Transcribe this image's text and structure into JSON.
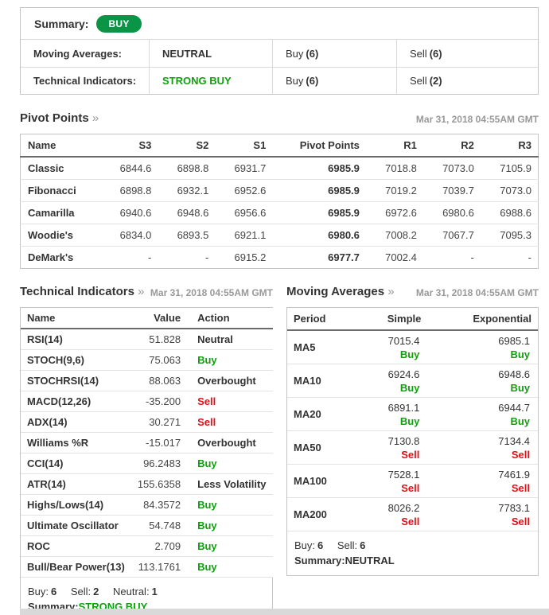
{
  "colors": {
    "badge_green": "#0a9546",
    "action_green": "#0da10d",
    "action_red": "#e01117",
    "neutral_dark": "#333333",
    "date_gray": "#999999",
    "bottom_bar_gray": "#d9d9d9"
  },
  "summary": {
    "label": "Summary:",
    "badge": "BUY",
    "rows": [
      {
        "label": "Moving Averages:",
        "signal": "NEUTRAL",
        "signal_class": "c-dark",
        "buy_label": "Buy",
        "buy_count": "(6)",
        "sell_label": "Sell",
        "sell_count": "(6)"
      },
      {
        "label": "Technical Indicators:",
        "signal": "STRONG BUY",
        "signal_class": "c-green",
        "buy_label": "Buy",
        "buy_count": "(6)",
        "sell_label": "Sell",
        "sell_count": "(2)"
      }
    ]
  },
  "pivot_points": {
    "title": "Pivot Points",
    "chevron": "»",
    "timestamp": "Mar 31, 2018 04:55AM GMT",
    "columns": [
      "Name",
      "S3",
      "S2",
      "S1",
      "Pivot Points",
      "R1",
      "R2",
      "R3"
    ],
    "rows": [
      {
        "name": "Classic",
        "s3": "6844.6",
        "s2": "6898.8",
        "s1": "6931.7",
        "pp": "6985.9",
        "r1": "7018.8",
        "r2": "7073.0",
        "r3": "7105.9"
      },
      {
        "name": "Fibonacci",
        "s3": "6898.8",
        "s2": "6932.1",
        "s1": "6952.6",
        "pp": "6985.9",
        "r1": "7019.2",
        "r2": "7039.7",
        "r3": "7073.0"
      },
      {
        "name": "Camarilla",
        "s3": "6940.6",
        "s2": "6948.6",
        "s1": "6956.6",
        "pp": "6985.9",
        "r1": "6972.6",
        "r2": "6980.6",
        "r3": "6988.6"
      },
      {
        "name": "Woodie's",
        "s3": "6834.0",
        "s2": "6893.5",
        "s1": "6921.1",
        "pp": "6980.6",
        "r1": "7008.2",
        "r2": "7067.7",
        "r3": "7095.3"
      },
      {
        "name": "DeMark's",
        "s3": "-",
        "s2": "-",
        "s1": "6915.2",
        "pp": "6977.7",
        "r1": "7002.4",
        "r2": "-",
        "r3": "-"
      }
    ]
  },
  "technical_indicators": {
    "title": "Technical Indicators",
    "chevron": "»",
    "timestamp": "Mar 31, 2018 04:55AM GMT",
    "columns": [
      "Name",
      "Value",
      "Action"
    ],
    "rows": [
      {
        "name": "RSI(14)",
        "value": "51.828",
        "action": "Neutral",
        "action_class": "c-dark"
      },
      {
        "name": "STOCH(9,6)",
        "value": "75.063",
        "action": "Buy",
        "action_class": "c-green"
      },
      {
        "name": "STOCHRSI(14)",
        "value": "88.063",
        "action": "Overbought",
        "action_class": "c-dark"
      },
      {
        "name": "MACD(12,26)",
        "value": "-35.200",
        "action": "Sell",
        "action_class": "c-red"
      },
      {
        "name": "ADX(14)",
        "value": "30.271",
        "action": "Sell",
        "action_class": "c-red"
      },
      {
        "name": "Williams %R",
        "value": "-15.017",
        "action": "Overbought",
        "action_class": "c-dark"
      },
      {
        "name": "CCI(14)",
        "value": "96.2483",
        "action": "Buy",
        "action_class": "c-green"
      },
      {
        "name": "ATR(14)",
        "value": "155.6358",
        "action": "Less Volatility",
        "action_class": "c-dark"
      },
      {
        "name": "Highs/Lows(14)",
        "value": "84.3572",
        "action": "Buy",
        "action_class": "c-green"
      },
      {
        "name": "Ultimate Oscillator",
        "value": "54.748",
        "action": "Buy",
        "action_class": "c-green"
      },
      {
        "name": "ROC",
        "value": "2.709",
        "action": "Buy",
        "action_class": "c-green"
      },
      {
        "name": "Bull/Bear Power(13)",
        "value": "113.1761",
        "action": "Buy",
        "action_class": "c-green"
      }
    ],
    "footer": {
      "buy_label": "Buy:",
      "buy_count": "6",
      "sell_label": "Sell:",
      "sell_count": "2",
      "neutral_label": "Neutral:",
      "neutral_count": "1",
      "summary_label": "Summary:",
      "summary_value": "STRONG BUY",
      "summary_class": "c-green"
    }
  },
  "moving_averages": {
    "title": "Moving Averages",
    "chevron": "»",
    "timestamp": "Mar 31, 2018 04:55AM GMT",
    "columns": [
      "Period",
      "Simple",
      "Exponential"
    ],
    "rows": [
      {
        "period": "MA5",
        "simple": "7015.4",
        "simple_action": "Buy",
        "simple_class": "c-green",
        "exp": "6985.1",
        "exp_action": "Buy",
        "exp_class": "c-green"
      },
      {
        "period": "MA10",
        "simple": "6924.6",
        "simple_action": "Buy",
        "simple_class": "c-green",
        "exp": "6948.6",
        "exp_action": "Buy",
        "exp_class": "c-green"
      },
      {
        "period": "MA20",
        "simple": "6891.1",
        "simple_action": "Buy",
        "simple_class": "c-green",
        "exp": "6944.7",
        "exp_action": "Buy",
        "exp_class": "c-green"
      },
      {
        "period": "MA50",
        "simple": "7130.8",
        "simple_action": "Sell",
        "simple_class": "c-red",
        "exp": "7134.4",
        "exp_action": "Sell",
        "exp_class": "c-red"
      },
      {
        "period": "MA100",
        "simple": "7528.1",
        "simple_action": "Sell",
        "simple_class": "c-red",
        "exp": "7461.9",
        "exp_action": "Sell",
        "exp_class": "c-red"
      },
      {
        "period": "MA200",
        "simple": "8026.2",
        "simple_action": "Sell",
        "simple_class": "c-red",
        "exp": "7783.1",
        "exp_action": "Sell",
        "exp_class": "c-red"
      }
    ],
    "footer": {
      "buy_label": "Buy:",
      "buy_count": "6",
      "sell_label": "Sell:",
      "sell_count": "6",
      "summary_label": "Summary:",
      "summary_value": "NEUTRAL",
      "summary_class": "c-dark"
    }
  }
}
